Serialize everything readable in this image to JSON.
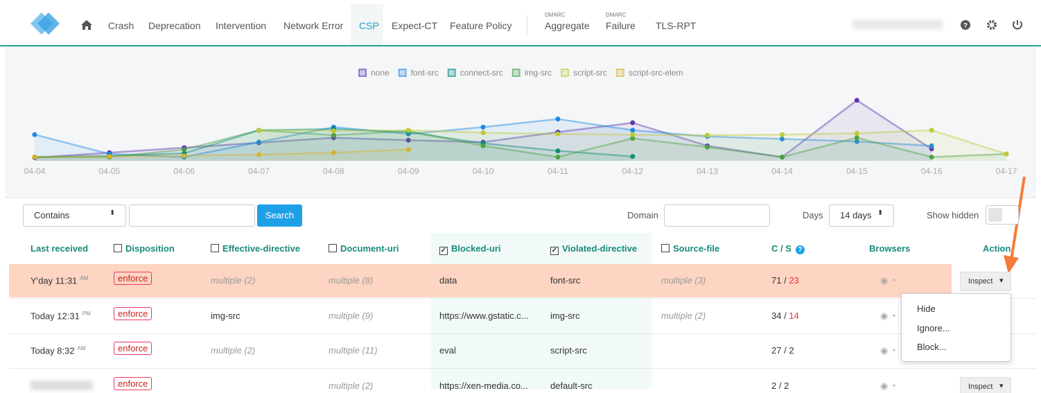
{
  "nav": {
    "items": [
      "Crash",
      "Deprecation",
      "Intervention",
      "Network Error",
      "CSP",
      "Expect-CT",
      "Feature Policy"
    ],
    "active": 4,
    "dmarc": [
      {
        "small": "DMARC",
        "label": "Aggregate"
      },
      {
        "small": "DMARC",
        "label": "Failure"
      }
    ],
    "extra": "TLS-RPT"
  },
  "chart": {
    "type": "line",
    "categories": [
      "04-04",
      "04-05",
      "04-06",
      "04-07",
      "04-08",
      "04-09",
      "04-10",
      "04-11",
      "04-12",
      "04-13",
      "04-14",
      "04-15",
      "04-16",
      "04-17"
    ],
    "ylim": [
      0,
      100
    ],
    "series": [
      {
        "name": "none",
        "color": "#5e35b1",
        "values": [
          5,
          13,
          21,
          29,
          37,
          33,
          30,
          46,
          61,
          24,
          6,
          97,
          19,
          null
        ]
      },
      {
        "name": "font-src",
        "color": "#1e88e5",
        "values": [
          42,
          11,
          6,
          30,
          54,
          43,
          54,
          67,
          49,
          39,
          35,
          31,
          24,
          null
        ]
      },
      {
        "name": "connect-src",
        "color": "#00897b",
        "values": [
          6,
          8,
          12,
          49,
          51,
          46,
          28,
          16,
          7,
          null,
          null,
          null,
          null,
          null
        ]
      },
      {
        "name": "img-src",
        "color": "#43a047",
        "values": [
          6,
          6,
          18,
          49,
          41,
          48,
          24,
          6,
          36,
          22,
          6,
          37,
          6,
          11
        ]
      },
      {
        "name": "script-src",
        "color": "#c0ca33",
        "values": [
          null,
          null,
          null,
          49,
          48,
          49,
          45,
          43,
          42,
          41,
          42,
          44,
          49,
          11
        ]
      },
      {
        "name": "script-src-elem",
        "color": "#d4b42a",
        "values": [
          6,
          7,
          8,
          10,
          13,
          18,
          null,
          null,
          null,
          null,
          null,
          null,
          null,
          null
        ]
      }
    ]
  },
  "toolbar": {
    "match": "Contains",
    "search": "Search",
    "domain": "Domain",
    "days": "Days",
    "days_value": "14 days",
    "show_hidden": "Show hidden"
  },
  "table": {
    "columns": [
      "Last received",
      "Disposition",
      "Effective-directive",
      "Document-uri",
      "Blocked-uri",
      "Violated-directive",
      "Source-file",
      "C / S",
      "Browsers",
      "Action"
    ],
    "rows": [
      {
        "time": "Y'day 11:31",
        "ampm": "AM",
        "disposition": "enforce",
        "effective": "multiple (2)",
        "document": "multiple (8)",
        "blocked": "data",
        "violated": "font-src",
        "source": "multiple (3)",
        "c": 71,
        "s": 23,
        "action": "Inspect"
      },
      {
        "time": "Today 12:31",
        "ampm": "PM",
        "disposition": "enforce",
        "effective": "img-src",
        "document": "multiple (9)",
        "blocked": "https://www.gstatic.c...",
        "violated": "img-src",
        "source": "multiple (2)",
        "c": 34,
        "s": 14
      },
      {
        "time": "Today 8:32",
        "ampm": "AM",
        "disposition": "enforce",
        "effective": "multiple (2)",
        "document": "multiple (11)",
        "blocked": "eval",
        "violated": "script-src",
        "c": 27,
        "s": 2
      },
      {
        "disposition": "enforce",
        "document": "multiple (2)",
        "blocked": "https://xen-media.co...",
        "violated": "default-src",
        "c": 2,
        "s": 2,
        "action": "Inspect"
      }
    ]
  },
  "menu": [
    "Hide",
    "Ignore...",
    "Block..."
  ]
}
